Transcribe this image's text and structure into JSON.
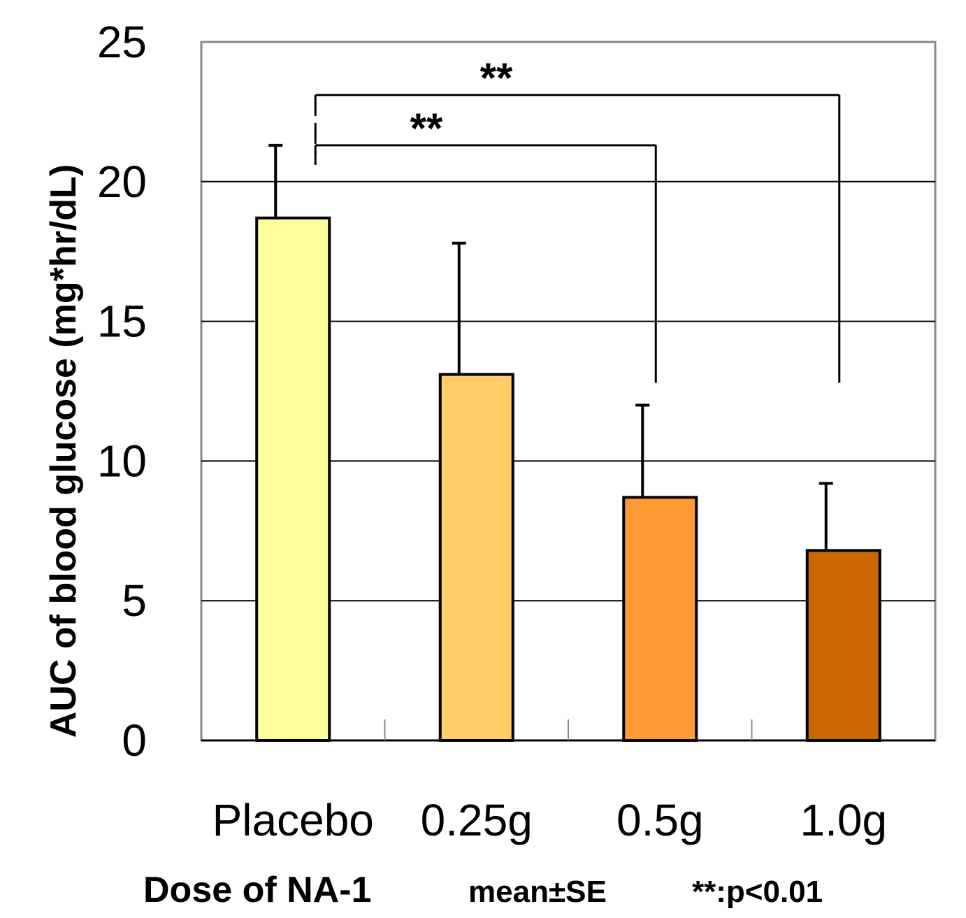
{
  "chart_data": {
    "type": "bar",
    "categories": [
      "Placebo",
      "0.25g",
      "0.5g",
      "1.0g"
    ],
    "values": [
      18.7,
      13.1,
      8.7,
      6.8
    ],
    "error": [
      2.6,
      4.7,
      3.3,
      2.4
    ],
    "colors": [
      "#FFFF99",
      "#FFCC66",
      "#FF9933",
      "#CC6600"
    ],
    "ylim": [
      0,
      25
    ],
    "yticks": [
      0,
      5,
      10,
      15,
      20,
      25
    ],
    "ylabel": "AUC of blood glucose  (mg*hr/dL)",
    "xlabel": "Dose of NA-1",
    "grid": true,
    "significance": [
      {
        "from": "Placebo",
        "to": "0.5g",
        "label": "**"
      },
      {
        "from": "Placebo",
        "to": "1.0g",
        "label": "**"
      }
    ],
    "notes": {
      "error_type": "mean±SE",
      "significance_key": "**:p<0.01"
    }
  }
}
